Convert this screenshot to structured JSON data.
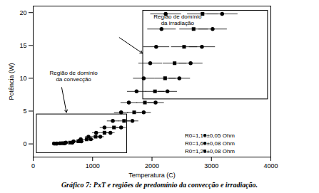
{
  "chart_data": {
    "type": "scatter",
    "caption": "Gráfico 7: PxT e regiões de predomínio da convecção e irradiação.",
    "x_label": "Temperatura (C)",
    "y_label": "Potência (W)",
    "xlim": [
      0,
      4000
    ],
    "xticks": [
      0,
      1000,
      2000,
      3000,
      4000
    ],
    "ylim": [
      -2,
      21
    ],
    "yticks": [
      0,
      5,
      10,
      15,
      20
    ],
    "legend": "lower right",
    "series": [
      {
        "name": "R0=1,10±0,05 Ohm",
        "color": "#000000",
        "marker": "circle",
        "x": [
          350,
          450,
          550,
          680,
          800,
          930,
          1060,
          1200,
          1340,
          1480,
          1610,
          1740,
          1860,
          1970,
          2070,
          2160,
          2230
        ],
        "values": [
          0.05,
          0.1,
          0.2,
          0.4,
          0.7,
          1.1,
          1.7,
          2.5,
          3.5,
          4.8,
          6.3,
          8.0,
          10.0,
          12.3,
          14.8,
          17.5,
          19.8
        ],
        "x_err": [
          20,
          25,
          30,
          40,
          50,
          60,
          70,
          80,
          100,
          120,
          140,
          160,
          180,
          200,
          220,
          240,
          260
        ]
      },
      {
        "name": "R0=1,60±0,08 Ohm",
        "color": "#000000",
        "marker": "circle",
        "x": [
          400,
          530,
          660,
          810,
          970,
          1130,
          1300,
          1480,
          1670,
          1860,
          2060,
          2260,
          2460,
          2650,
          2840,
          3020,
          3180
        ],
        "values": [
          0.05,
          0.1,
          0.2,
          0.4,
          0.7,
          1.1,
          1.7,
          2.5,
          3.5,
          4.8,
          6.3,
          8.0,
          10.0,
          12.3,
          14.8,
          17.5,
          19.8
        ],
        "x_err": [
          20,
          25,
          30,
          40,
          50,
          60,
          70,
          80,
          100,
          120,
          140,
          160,
          180,
          200,
          220,
          240,
          260
        ]
      },
      {
        "name": "R0=1,25±0,08 Ohm",
        "color": "#000000",
        "marker": "square",
        "x": [
          380,
          500,
          620,
          760,
          900,
          1050,
          1200,
          1360,
          1530,
          1700,
          1880,
          2050,
          2220,
          2380,
          2540,
          2700,
          2850
        ],
        "values": [
          0.05,
          0.1,
          0.2,
          0.4,
          0.7,
          1.1,
          1.7,
          2.5,
          3.5,
          4.8,
          6.3,
          8.0,
          10.0,
          12.3,
          14.8,
          17.5,
          19.8
        ],
        "x_err": [
          20,
          25,
          30,
          40,
          50,
          60,
          70,
          80,
          100,
          120,
          140,
          160,
          180,
          200,
          220,
          240,
          260
        ]
      }
    ],
    "annotations": [
      {
        "text": "Região de domínio\nda irradiação",
        "x": 2430,
        "y": 18.9,
        "region": {
          "x": [
            1850,
            3950
          ],
          "y": [
            6.8,
            20.3
          ]
        },
        "arrow": {
          "from": [
            1450,
            16.2
          ],
          "to": [
            1840,
            13.8
          ]
        }
      },
      {
        "text": "Região de domínio\nda convecção",
        "x": 680,
        "y": 10.4,
        "region": {
          "x": [
            60,
            1580
          ],
          "y": [
            -1.4,
            4.5
          ]
        },
        "arrow": {
          "from": [
            480,
            8.6
          ],
          "to": [
            560,
            4.8
          ]
        }
      }
    ]
  }
}
